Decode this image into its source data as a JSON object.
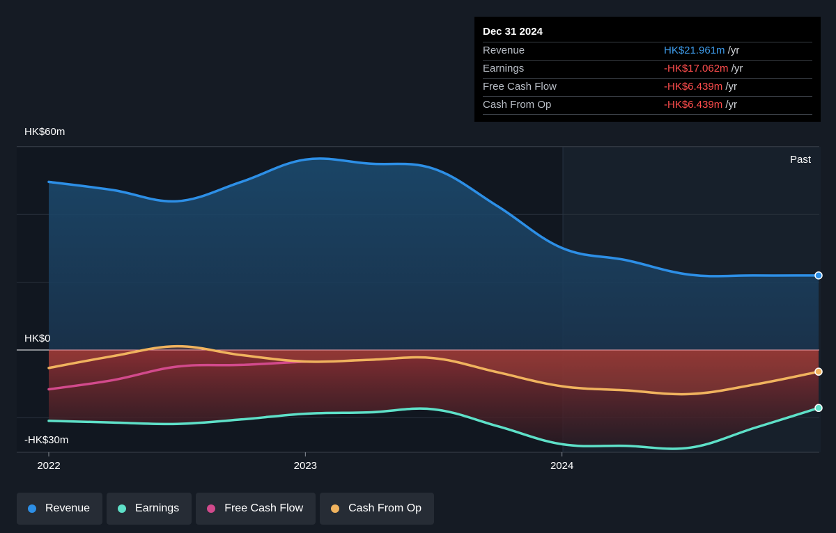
{
  "tooltip": {
    "date": "Dec 31 2024",
    "rows": [
      {
        "label": "Revenue",
        "value": "HK$21.961m",
        "unit": " /yr",
        "color": "#3d9ae8"
      },
      {
        "label": "Earnings",
        "value": "-HK$17.062m",
        "unit": " /yr",
        "color": "#ff4d4d"
      },
      {
        "label": "Free Cash Flow",
        "value": "-HK$6.439m",
        "unit": " /yr",
        "color": "#ff4d4d"
      },
      {
        "label": "Cash From Op",
        "value": "-HK$6.439m",
        "unit": " /yr",
        "color": "#ff4d4d"
      }
    ]
  },
  "legend": [
    {
      "label": "Revenue",
      "color": "#2d8fe6"
    },
    {
      "label": "Earnings",
      "color": "#5ee0c8"
    },
    {
      "label": "Free Cash Flow",
      "color": "#d24a8c"
    },
    {
      "label": "Cash From Op",
      "color": "#f0b35e"
    }
  ],
  "chart_data": {
    "type": "line",
    "y_axis_labels": [
      "HK$60m",
      "HK$0",
      "-HK$30m"
    ],
    "x_tick_labels": [
      "2022",
      "2023",
      "2024"
    ],
    "past_label": "Past",
    "ylim": [
      -30,
      60
    ],
    "grid": true,
    "series": [
      {
        "name": "Revenue",
        "color": "#2d8fe6",
        "points": [
          [
            2022.0,
            49.6
          ],
          [
            2022.25,
            47.2
          ],
          [
            2022.5,
            43.9
          ],
          [
            2022.75,
            49.6
          ],
          [
            2023.0,
            56.2
          ],
          [
            2023.25,
            55.0
          ],
          [
            2023.5,
            53.5
          ],
          [
            2023.75,
            42.4
          ],
          [
            2024.0,
            30.1
          ],
          [
            2024.25,
            26.5
          ],
          [
            2024.5,
            22.2
          ],
          [
            2024.75,
            22.0
          ],
          [
            2025.0,
            22.0
          ]
        ]
      },
      {
        "name": "Earnings",
        "color": "#5ee0c8",
        "points": [
          [
            2022.0,
            -20.9
          ],
          [
            2022.25,
            -21.4
          ],
          [
            2022.5,
            -21.8
          ],
          [
            2022.75,
            -20.5
          ],
          [
            2023.0,
            -18.8
          ],
          [
            2023.25,
            -18.4
          ],
          [
            2023.5,
            -17.5
          ],
          [
            2023.75,
            -22.5
          ],
          [
            2024.0,
            -27.8
          ],
          [
            2024.25,
            -28.3
          ],
          [
            2024.5,
            -28.8
          ],
          [
            2024.75,
            -23.0
          ],
          [
            2025.0,
            -17.1
          ]
        ]
      },
      {
        "name": "Free Cash Flow",
        "color": "#d24a8c",
        "points": [
          [
            2022.0,
            -11.6
          ],
          [
            2022.25,
            -8.9
          ],
          [
            2022.5,
            -4.9
          ],
          [
            2022.75,
            -4.4
          ],
          [
            2023.0,
            -3.4
          ]
        ]
      },
      {
        "name": "Cash From Op",
        "color": "#f0b35e",
        "points": [
          [
            2022.0,
            -5.3
          ],
          [
            2022.25,
            -1.8
          ],
          [
            2022.5,
            1.1
          ],
          [
            2022.75,
            -1.5
          ],
          [
            2023.0,
            -3.4
          ],
          [
            2023.25,
            -2.9
          ],
          [
            2023.5,
            -2.4
          ],
          [
            2023.75,
            -6.6
          ],
          [
            2024.0,
            -10.7
          ],
          [
            2024.25,
            -11.9
          ],
          [
            2024.5,
            -13.0
          ],
          [
            2024.75,
            -10.2
          ],
          [
            2025.0,
            -6.4
          ]
        ]
      }
    ]
  }
}
